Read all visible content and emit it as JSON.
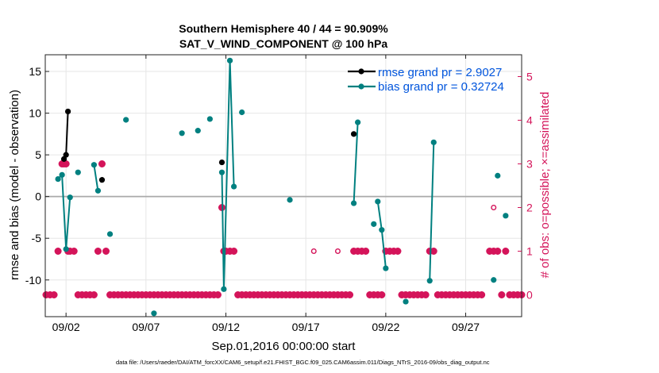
{
  "chart_data": {
    "type": "line",
    "title": "Southern Hemisphere 40 / 44 = 90.909%",
    "subtitle": "SAT_V_WIND_COMPONENT @ 100 hPa",
    "xlabel": "Sep.01,2016 00:00:00 start",
    "ylabel": "rmse and bias (model - observation)",
    "y2label": "# of obs: o=possible; ×=assimilated",
    "footer": "data file: /Users/raeder/DAI/ATM_forcXX/CAM6_setup/f.e21.FHIST_BGC.f09_025.CAM6assim.011/Diags_NTrS_2016-09/obs_diag_output.nc",
    "xlim": [
      0.7,
      30.5
    ],
    "ylim": [
      -14.4,
      17
    ],
    "y2lim": [
      -0.5,
      5.5
    ],
    "x_ticks": [
      {
        "x": 2,
        "label": "09/02"
      },
      {
        "x": 7,
        "label": "09/07"
      },
      {
        "x": 12,
        "label": "09/12"
      },
      {
        "x": 17,
        "label": "09/17"
      },
      {
        "x": 22,
        "label": "09/22"
      },
      {
        "x": 27,
        "label": "09/27"
      }
    ],
    "y_ticks": [
      15,
      10,
      5,
      0,
      -5,
      -10
    ],
    "y2_ticks": [
      0,
      1,
      2,
      3,
      4,
      5
    ],
    "grid": true,
    "legend_position": "top-right",
    "zero_line": true,
    "colors": {
      "rmse": "#000000",
      "bias": "#008080",
      "obs": "#d4145a",
      "legend_text": "#0055dd",
      "zero": "#aaaaaa"
    },
    "series": [
      {
        "name": "rmse grand pr = 2.9027",
        "color": "#000000",
        "x": [
          1.75,
          1.87,
          2.0,
          2.12,
          4.25,
          11.75,
          20.0
        ],
        "y": [
          null,
          4.5,
          5.0,
          10.2,
          2.0,
          4.1,
          7.5
        ]
      },
      {
        "name": "bias grand pr = 0.32724",
        "color": "#008080",
        "x": [
          1.5,
          1.75,
          2.0,
          2.25,
          2.75,
          3.75,
          4.0,
          4.25,
          4.75,
          5.75,
          7.5,
          9.25,
          10.25,
          11.0,
          11.75,
          11.87,
          12.0,
          12.25,
          12.5,
          13.0,
          16.0,
          20.0,
          20.25,
          21.25,
          21.5,
          21.75,
          22.0,
          23.25,
          24.75,
          25.0,
          28.75,
          29.0,
          29.5
        ],
        "y": [
          2.1,
          2.6,
          -6.3,
          -0.1,
          2.9,
          3.8,
          0.7,
          null,
          -4.5,
          9.2,
          -14.0,
          7.6,
          7.9,
          9.3,
          2.9,
          -11.1,
          null,
          16.3,
          1.2,
          10.1,
          -0.4,
          -0.8,
          8.9,
          -3.3,
          -0.6,
          -4.0,
          -8.6,
          -12.6,
          -10.1,
          6.5,
          -10.0,
          2.5,
          -2.3
        ],
        "lines": [
          [
            0,
            3
          ],
          [
            5,
            6
          ],
          [
            14,
            18
          ],
          [
            21,
            22
          ],
          [
            24,
            26
          ],
          [
            28,
            29
          ]
        ]
      },
      {
        "name": "obs assimilated",
        "marker": "x",
        "color": "#d4145a",
        "x": [
          0.75,
          1.0,
          1.25,
          1.5,
          1.75,
          1.87,
          2.0,
          2.12,
          2.25,
          2.5,
          2.75,
          3.0,
          3.25,
          3.5,
          3.75,
          4.0,
          4.25,
          4.5,
          4.75,
          5.0,
          5.25,
          5.5,
          5.75,
          6.0,
          6.25,
          6.5,
          6.75,
          7.0,
          7.25,
          7.5,
          7.75,
          8.0,
          8.25,
          8.5,
          8.75,
          9.0,
          9.25,
          9.5,
          9.75,
          10.0,
          10.25,
          10.5,
          10.75,
          11.0,
          11.25,
          11.5,
          11.75,
          11.87,
          12.0,
          12.25,
          12.5,
          12.75,
          13.0,
          13.25,
          13.5,
          13.75,
          14.0,
          14.25,
          14.5,
          14.75,
          15.0,
          15.25,
          15.5,
          15.75,
          16.0,
          16.25,
          16.5,
          16.75,
          17.0,
          17.25,
          17.5,
          17.75,
          18.0,
          18.25,
          18.5,
          18.75,
          19.0,
          19.25,
          19.5,
          19.75,
          20.0,
          20.25,
          20.5,
          20.75,
          21.0,
          21.25,
          21.5,
          21.75,
          22.0,
          22.25,
          22.5,
          22.75,
          23.0,
          23.25,
          23.5,
          23.75,
          24.0,
          24.25,
          24.5,
          24.75,
          25.0,
          25.25,
          25.5,
          25.75,
          26.0,
          26.25,
          26.5,
          26.75,
          27.0,
          27.25,
          27.5,
          27.75,
          28.0,
          28.5,
          28.75,
          29.0,
          29.25,
          29.5,
          29.75,
          30.0,
          30.25,
          30.5
        ],
        "y": [
          0,
          0,
          0,
          1,
          3,
          3,
          3,
          1,
          1,
          1,
          0,
          0,
          0,
          0,
          0,
          1,
          3,
          1,
          0,
          0,
          0,
          0,
          0,
          0,
          0,
          0,
          0,
          0,
          0,
          0,
          0,
          0,
          0,
          0,
          0,
          0,
          0,
          0,
          0,
          0,
          0,
          0,
          0,
          0,
          0,
          0,
          2,
          1,
          1,
          1,
          1,
          0,
          0,
          0,
          0,
          0,
          0,
          0,
          0,
          0,
          0,
          0,
          0,
          0,
          0,
          0,
          0,
          0,
          0,
          0,
          0,
          0,
          0,
          0,
          0,
          0,
          0,
          0,
          0,
          0,
          1,
          1,
          1,
          1,
          0,
          0,
          0,
          0,
          1,
          1,
          1,
          1,
          0,
          0,
          0,
          0,
          0,
          0,
          0,
          1,
          1,
          0,
          0,
          0,
          0,
          0,
          0,
          0,
          0,
          0,
          0,
          0,
          0,
          1,
          1,
          1,
          0,
          1,
          0,
          0,
          0,
          0
        ]
      },
      {
        "name": "obs possible",
        "marker": "o",
        "color": "#d4145a",
        "x": [
          17.5,
          19.0,
          28.75
        ],
        "y": [
          1,
          1,
          2
        ]
      }
    ]
  }
}
